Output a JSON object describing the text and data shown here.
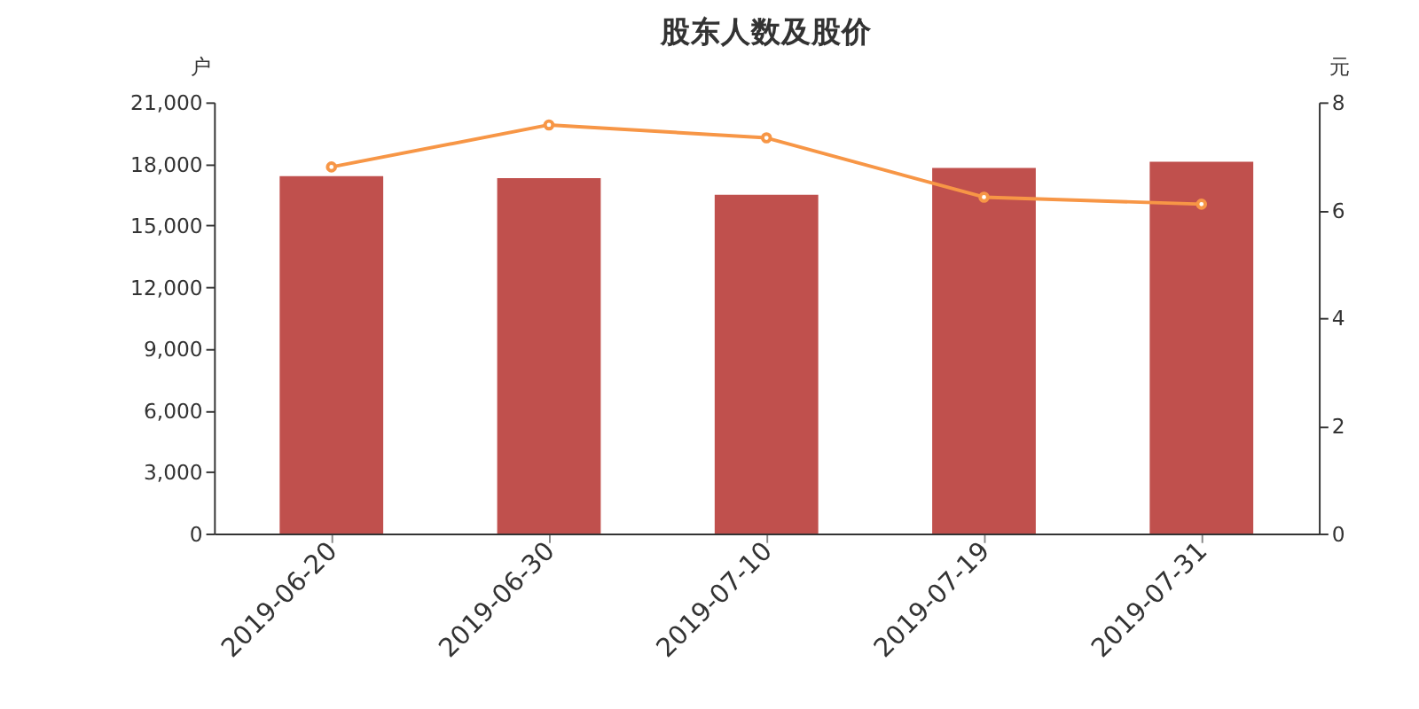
{
  "chart_data": {
    "type": "bar",
    "title": "股东人数及股价",
    "ylabel": "户",
    "y2label": "元",
    "categories": [
      "2019-06-20",
      "2019-06-30",
      "2019-07-10",
      "2019-07-19",
      "2019-07-31"
    ],
    "series": [
      {
        "color": "#c0504d",
        "values": [
          17400,
          17300,
          16500,
          17800,
          18100
        ]
      },
      {
        "type": "line",
        "axis": "y2",
        "color": "#f79646",
        "marker": "circle",
        "values": [
          6.8,
          7.58,
          7.34,
          6.24,
          6.11
        ]
      }
    ],
    "ylim": [
      0,
      21000
    ],
    "yticks": [
      0,
      {
        "value": 3000,
        "label": "3,000"
      },
      {
        "value": 6000,
        "label": "6,000"
      },
      {
        "value": 9000,
        "label": "9,000"
      },
      {
        "value": 12000,
        "label": "12,000"
      },
      {
        "value": 15000,
        "label": "15,000"
      },
      {
        "value": 18000,
        "label": "18,000"
      },
      {
        "value": 21000,
        "label": "21,000"
      }
    ],
    "y2lim": [
      0,
      8
    ],
    "y2ticks": [
      0,
      2,
      4,
      6,
      8
    ],
    "grid": false,
    "legend": false
  }
}
